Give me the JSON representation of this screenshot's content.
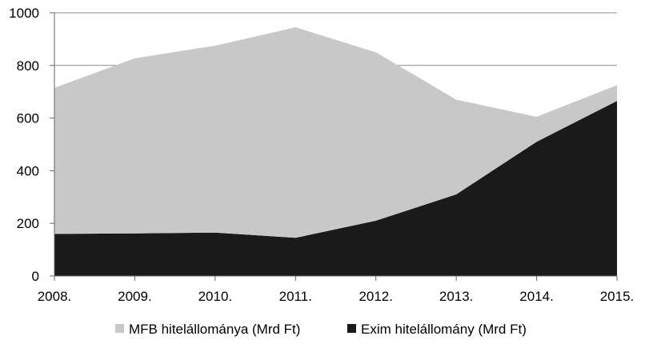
{
  "chart_data": {
    "type": "area",
    "stacked": true,
    "categories": [
      "2008.",
      "2009.",
      "2010.",
      "2011.",
      "2012.",
      "2013.",
      "2014.",
      "2015."
    ],
    "series": [
      {
        "name": "Exim hitelállomány (Mrd Ft)",
        "values": [
          160,
          162,
          165,
          145,
          210,
          310,
          510,
          665
        ],
        "color": "#1a1a1a"
      },
      {
        "name": "MFB hitelállománya (Mrd Ft)",
        "values": [
          555,
          665,
          710,
          800,
          640,
          360,
          95,
          60
        ],
        "color": "#c8c8c8"
      }
    ],
    "y_ticks": [
      "0",
      "200",
      "400",
      "600",
      "800",
      "1000"
    ],
    "ylim": [
      0,
      1000
    ],
    "grid": true,
    "legend_position": "bottom",
    "legend_order": [
      "MFB hitelállománya (Mrd Ft)",
      "Exim hitelállomány (Mrd Ft)"
    ]
  }
}
